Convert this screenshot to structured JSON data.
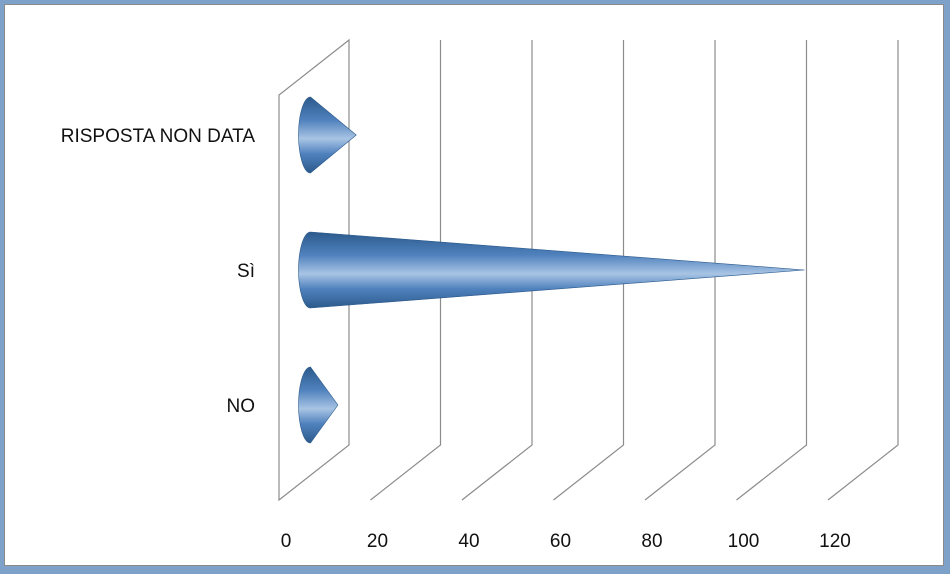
{
  "chart_data": {
    "type": "bar",
    "style": "3d-cone-horizontal",
    "categories": [
      "NO",
      "Sì",
      "RISPOSTA NON DATA"
    ],
    "values": [
      6,
      108,
      10
    ],
    "xlim": [
      0,
      120
    ],
    "xticks": [
      0,
      20,
      40,
      60,
      80,
      100,
      120
    ],
    "title": "",
    "xlabel": "",
    "ylabel": "",
    "grid": true,
    "legend": "none",
    "colors": {
      "cone": "#4f81bd",
      "cone_dark": "#2c5a8c",
      "cone_light": "#a8c4e4",
      "grid": "#8c8c8c"
    }
  }
}
